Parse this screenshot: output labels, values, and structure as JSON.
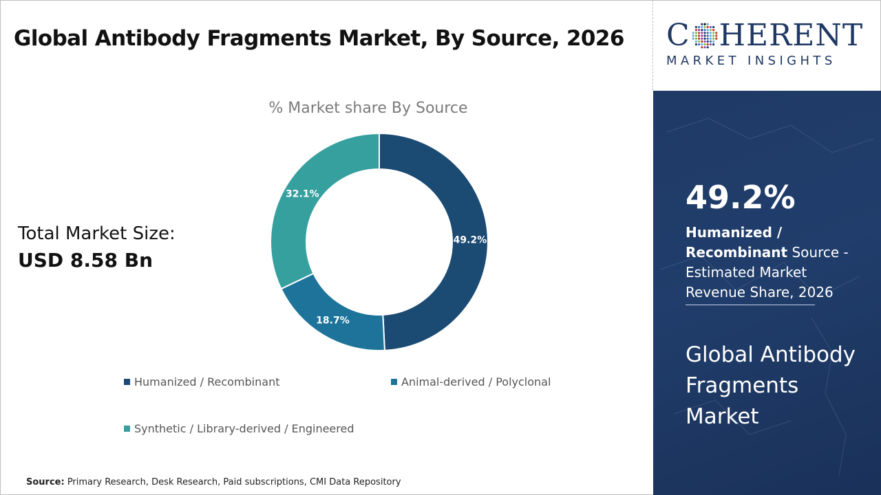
{
  "header": {
    "title": "Global Antibody Fragments Market, By Source, 2026"
  },
  "market_size": {
    "label": "Total Market Size:",
    "value": "USD 8.58 Bn"
  },
  "logo": {
    "word_before": "C",
    "word_after": "HERENT",
    "subtitle": "MARKET INSIGHTS"
  },
  "side_panel": {
    "stat_value": "49.2%",
    "stat_bold": "Humanized / Recombinant",
    "stat_rest": " Source - Estimated Market Revenue Share, 2026",
    "title": "Global Antibody Fragments Market"
  },
  "source": {
    "label": "Source:",
    "text": " Primary Research, Desk Research, Paid subscriptions, CMI Data Repository"
  },
  "chart_data": {
    "type": "pie",
    "title": "% Market share By Source",
    "donut": true,
    "categories": [
      "Humanized / Recombinant",
      "Animal-derived / Polyclonal",
      "Synthetic / Library-derived / Engineered"
    ],
    "values": [
      49.2,
      18.7,
      32.1
    ],
    "data_labels": [
      "49.2%",
      "18.7%",
      "32.1%"
    ],
    "colors": [
      "#1b4a73",
      "#1d7399",
      "#36a09f"
    ],
    "legend_position": "bottom"
  }
}
